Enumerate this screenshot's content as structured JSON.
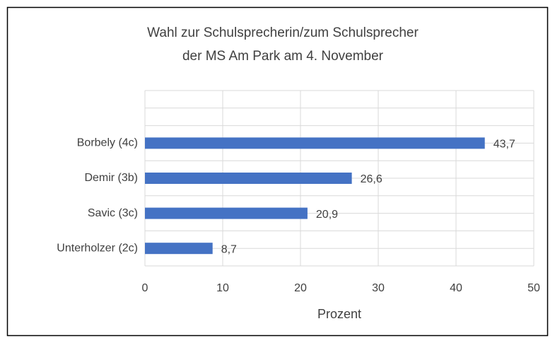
{
  "chart_data": {
    "type": "bar",
    "orientation": "horizontal",
    "title": [
      "Wahl zur Schulsprecherin/zum Schulsprecher",
      "der MS Am Park am 4. November"
    ],
    "categories": [
      null,
      "Borbely (4c)",
      "Demir (3b)",
      "Savic (3c)",
      "Unterholzer (2c)"
    ],
    "values": [
      null,
      43.7,
      26.6,
      20.9,
      8.7
    ],
    "value_labels": [
      null,
      "43,7",
      "26,6",
      "20,9",
      "8,7"
    ],
    "color": "#4472c4",
    "xlabel": "Prozent",
    "xlim": [
      0,
      50
    ],
    "xticks": [
      0,
      10,
      20,
      30,
      40,
      50
    ],
    "grid": true
  }
}
